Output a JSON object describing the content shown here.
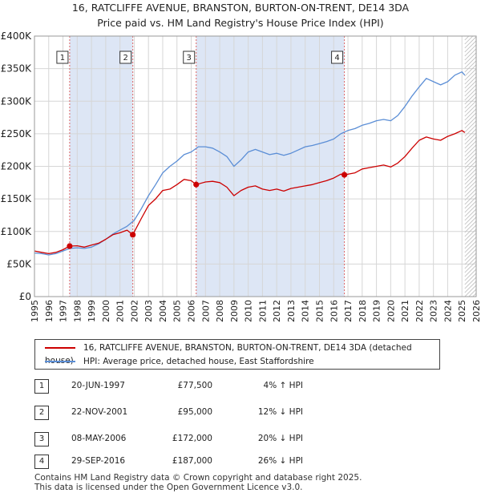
{
  "title_line1": "16, RATCLIFFE AVENUE, BRANSTON, BURTON-ON-TRENT, DE14 3DA",
  "title_line2": "Price paid vs. HM Land Registry's House Price Index (HPI)",
  "colors": {
    "property": "#cc0000",
    "hpi": "#5b8ed6",
    "shade": "#dde6f5",
    "grid": "#d6d6d6"
  },
  "chart_data": {
    "type": "line",
    "xlim": [
      1995,
      2026
    ],
    "ylim": [
      0,
      400000
    ],
    "y_ticks": [
      {
        "value": 0,
        "label": "£0"
      },
      {
        "value": 50000,
        "label": "£50K"
      },
      {
        "value": 100000,
        "label": "£100K"
      },
      {
        "value": 150000,
        "label": "£150K"
      },
      {
        "value": 200000,
        "label": "£200K"
      },
      {
        "value": 250000,
        "label": "£250K"
      },
      {
        "value": 300000,
        "label": "£300K"
      },
      {
        "value": 350000,
        "label": "£350K"
      },
      {
        "value": 400000,
        "label": "£400K"
      }
    ],
    "x_ticks": [
      "1995",
      "1996",
      "1997",
      "1998",
      "1999",
      "2000",
      "2001",
      "2002",
      "2003",
      "2004",
      "2005",
      "2006",
      "2007",
      "2008",
      "2009",
      "2010",
      "2011",
      "2012",
      "2013",
      "2014",
      "2015",
      "2016",
      "2017",
      "2018",
      "2019",
      "2020",
      "2021",
      "2022",
      "2023",
      "2024",
      "2025",
      "2026"
    ],
    "shaded_periods": [
      [
        1997.47,
        2001.9
      ],
      [
        2006.35,
        2016.75
      ]
    ],
    "data_end": 2025.2,
    "series": [
      {
        "name": "16, RATCLIFFE AVENUE, BRANSTON, BURTON-ON-TRENT, DE14 3DA (detached house)",
        "color": "#cc0000",
        "x": [
          1995.0,
          1995.5,
          1996.0,
          1996.5,
          1997.0,
          1997.47,
          1998.0,
          1998.5,
          1999.0,
          1999.5,
          2000.0,
          2000.5,
          2001.0,
          2001.5,
          2001.9,
          2002.5,
          2003.0,
          2003.5,
          2004.0,
          2004.5,
          2005.0,
          2005.5,
          2006.0,
          2006.35,
          2007.0,
          2007.5,
          2008.0,
          2008.5,
          2009.0,
          2009.5,
          2010.0,
          2010.5,
          2011.0,
          2011.5,
          2012.0,
          2012.5,
          2013.0,
          2013.5,
          2014.0,
          2014.5,
          2015.0,
          2015.5,
          2016.0,
          2016.5,
          2016.75,
          2017.5,
          2018.0,
          2018.5,
          2019.0,
          2019.5,
          2020.0,
          2020.5,
          2021.0,
          2021.5,
          2022.0,
          2022.5,
          2023.0,
          2023.5,
          2024.0,
          2024.5,
          2025.0,
          2025.2
        ],
        "values": [
          70000,
          68000,
          66000,
          68000,
          72000,
          77500,
          78000,
          76000,
          79000,
          82000,
          88000,
          95000,
          98000,
          102000,
          95000,
          120000,
          140000,
          150000,
          163000,
          165000,
          172000,
          180000,
          178000,
          172000,
          176000,
          177000,
          175000,
          168000,
          155000,
          163000,
          168000,
          170000,
          165000,
          163000,
          165000,
          162000,
          166000,
          168000,
          170000,
          172000,
          175000,
          178000,
          182000,
          188000,
          187000,
          190000,
          196000,
          198000,
          200000,
          202000,
          199000,
          205000,
          215000,
          228000,
          240000,
          245000,
          242000,
          240000,
          246000,
          250000,
          255000,
          252000
        ]
      },
      {
        "name": "HPI: Average price, detached house, East Staffordshire",
        "color": "#5b8ed6",
        "x": [
          1995.0,
          1995.5,
          1996.0,
          1996.5,
          1997.0,
          1997.5,
          1998.0,
          1998.5,
          1999.0,
          1999.5,
          2000.0,
          2000.5,
          2001.0,
          2001.5,
          2002.0,
          2002.5,
          2003.0,
          2003.5,
          2004.0,
          2004.5,
          2005.0,
          2005.5,
          2006.0,
          2006.5,
          2007.0,
          2007.5,
          2008.0,
          2008.5,
          2009.0,
          2009.5,
          2010.0,
          2010.5,
          2011.0,
          2011.5,
          2012.0,
          2012.5,
          2013.0,
          2013.5,
          2014.0,
          2014.5,
          2015.0,
          2015.5,
          2016.0,
          2016.5,
          2017.0,
          2017.5,
          2018.0,
          2018.5,
          2019.0,
          2019.5,
          2020.0,
          2020.5,
          2021.0,
          2021.5,
          2022.0,
          2022.5,
          2023.0,
          2023.5,
          2024.0,
          2024.5,
          2025.0,
          2025.2
        ],
        "values": [
          67000,
          66000,
          64000,
          66000,
          70000,
          74000,
          75000,
          74000,
          76000,
          81000,
          88000,
          96000,
          102000,
          108000,
          117000,
          135000,
          155000,
          172000,
          190000,
          200000,
          208000,
          218000,
          222000,
          230000,
          230000,
          228000,
          222000,
          215000,
          200000,
          210000,
          222000,
          226000,
          222000,
          218000,
          220000,
          217000,
          220000,
          225000,
          230000,
          232000,
          235000,
          238000,
          242000,
          250000,
          255000,
          258000,
          263000,
          266000,
          270000,
          272000,
          270000,
          278000,
          292000,
          308000,
          322000,
          335000,
          330000,
          325000,
          330000,
          340000,
          345000,
          340000
        ]
      }
    ],
    "sales": [
      {
        "id": "1",
        "x": 1997.47,
        "value": 77500
      },
      {
        "id": "2",
        "x": 2001.9,
        "value": 95000
      },
      {
        "id": "3",
        "x": 2006.35,
        "value": 172000
      },
      {
        "id": "4",
        "x": 2016.75,
        "value": 187000
      }
    ]
  },
  "legend": {
    "property_label": "16, RATCLIFFE AVENUE, BRANSTON, BURTON-ON-TRENT, DE14 3DA (detached house)",
    "hpi_label": "HPI: Average price, detached house, East Staffordshire"
  },
  "sales_table": [
    {
      "num": "1",
      "date": "20-JUN-1997",
      "price": "£77,500",
      "hpi": "4% ↑ HPI"
    },
    {
      "num": "2",
      "date": "22-NOV-2001",
      "price": "£95,000",
      "hpi": "12% ↓ HPI"
    },
    {
      "num": "3",
      "date": "08-MAY-2006",
      "price": "£172,000",
      "hpi": "20% ↓ HPI"
    },
    {
      "num": "4",
      "date": "29-SEP-2016",
      "price": "£187,000",
      "hpi": "26% ↓ HPI"
    }
  ],
  "footer_line1": "Contains HM Land Registry data © Crown copyright and database right 2025.",
  "footer_line2": "This data is licensed under the Open Government Licence v3.0."
}
